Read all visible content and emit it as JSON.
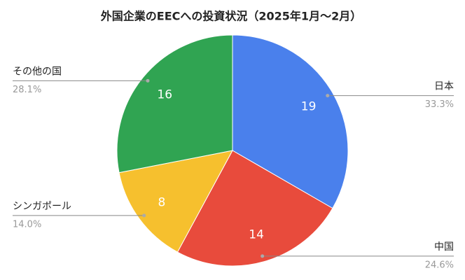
{
  "chart_data": {
    "type": "pie",
    "title": "外国企業のEECへの投資状況（2025年1月〜2月）",
    "categories": [
      "日本",
      "中国",
      "シンガポール",
      "その他の国"
    ],
    "values": [
      19,
      14,
      8,
      16
    ],
    "percent_labels": [
      "33.3%",
      "24.6%",
      "14.0%",
      "28.1%"
    ],
    "colors": [
      "#4a80ec",
      "#e84b3c",
      "#f6c02e",
      "#30a452"
    ]
  }
}
